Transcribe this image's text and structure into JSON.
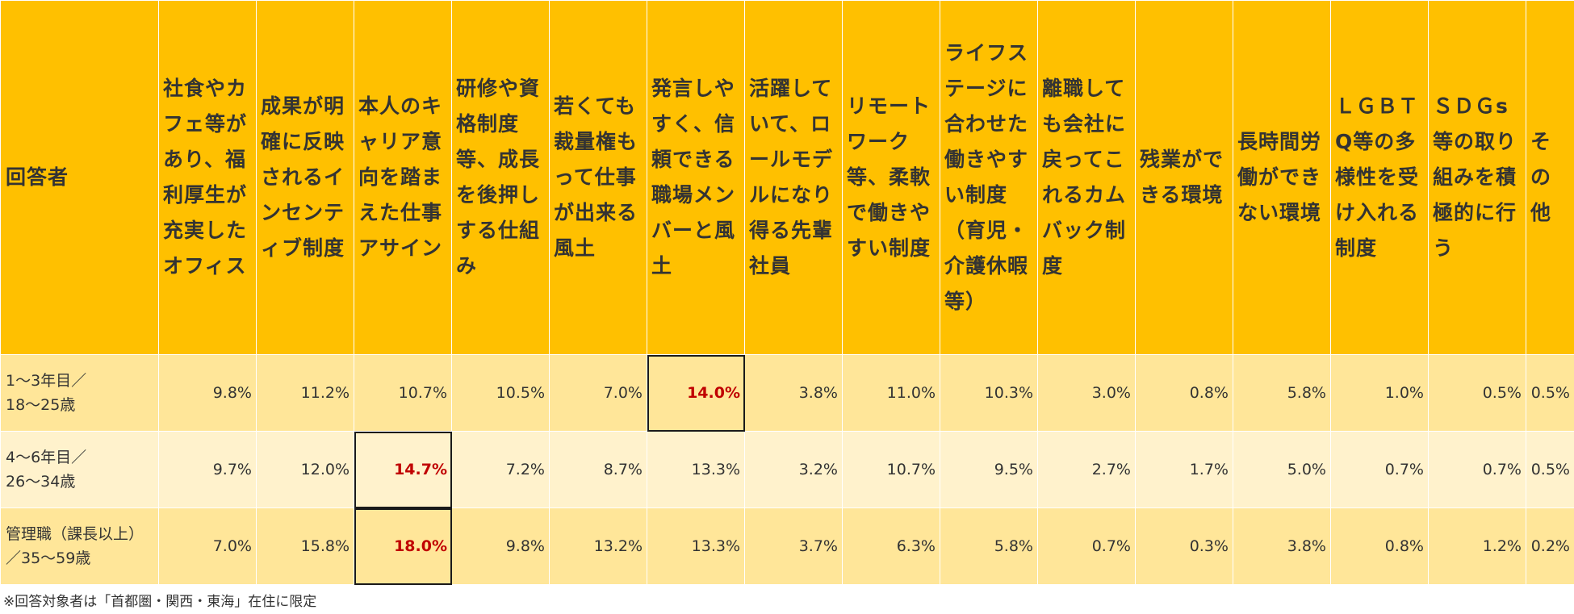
{
  "chart_data": {
    "type": "table",
    "header_respondent": "回答者",
    "columns": [
      "社食やカフェ等があり、福利厚生が充実したオフィス",
      "成果が明確に反映されるインセンティブ制度",
      "本人のキャリア意向を踏まえた仕事アサイン",
      "研修や資格制度等、成長を後押しする仕組み",
      "若くても裁量権もって仕事が出来る風土",
      "発言しやすく、信頼できる職場メンバーと風土",
      "活躍していて、ロールモデルになり得る先輩社員",
      "リモートワーク等、柔軟で働きやすい制度",
      "ライフステージに合わせた働きやすい制度（育児・介護休暇等）",
      "離職しても会社に戻ってこれるカムバック制度",
      "残業ができる環境",
      "長時間労働ができない環境",
      "ＬＧＢＴQ等の多様性を受け入れる制度",
      "ＳＤＧs等の取り組みを積極的に行う",
      "その他"
    ],
    "rows": [
      {
        "respondent_line1": "1～3年目／",
        "respondent_line2": "18～25歳",
        "values": [
          "9.8%",
          "11.2%",
          "10.7%",
          "10.5%",
          "7.0%",
          "14.0%",
          "3.8%",
          "11.0%",
          "10.3%",
          "3.0%",
          "0.8%",
          "5.8%",
          "1.0%",
          "0.5%",
          "0.5%"
        ],
        "highlight_index": 5
      },
      {
        "respondent_line1": "4～6年目／",
        "respondent_line2": "26～34歳",
        "values": [
          "9.7%",
          "12.0%",
          "14.7%",
          "7.2%",
          "8.7%",
          "13.3%",
          "3.2%",
          "10.7%",
          "9.5%",
          "2.7%",
          "1.7%",
          "5.0%",
          "0.7%",
          "0.7%",
          "0.5%"
        ],
        "highlight_index": 2
      },
      {
        "respondent_line1": "管理職（課長以上）",
        "respondent_line2": "／35～59歳",
        "values": [
          "7.0%",
          "15.8%",
          "18.0%",
          "9.8%",
          "13.2%",
          "13.3%",
          "3.7%",
          "6.3%",
          "5.8%",
          "0.7%",
          "0.3%",
          "3.8%",
          "0.8%",
          "1.2%",
          "0.2%"
        ],
        "highlight_index": 2
      }
    ],
    "colors": {
      "header": "#ffc000",
      "row_dark": "#ffe699",
      "row_light": "#fff2cc",
      "highlight_text": "#c00000"
    }
  },
  "footnote": "※回答対象者は「首都圏・関西・東海」在住に限定"
}
